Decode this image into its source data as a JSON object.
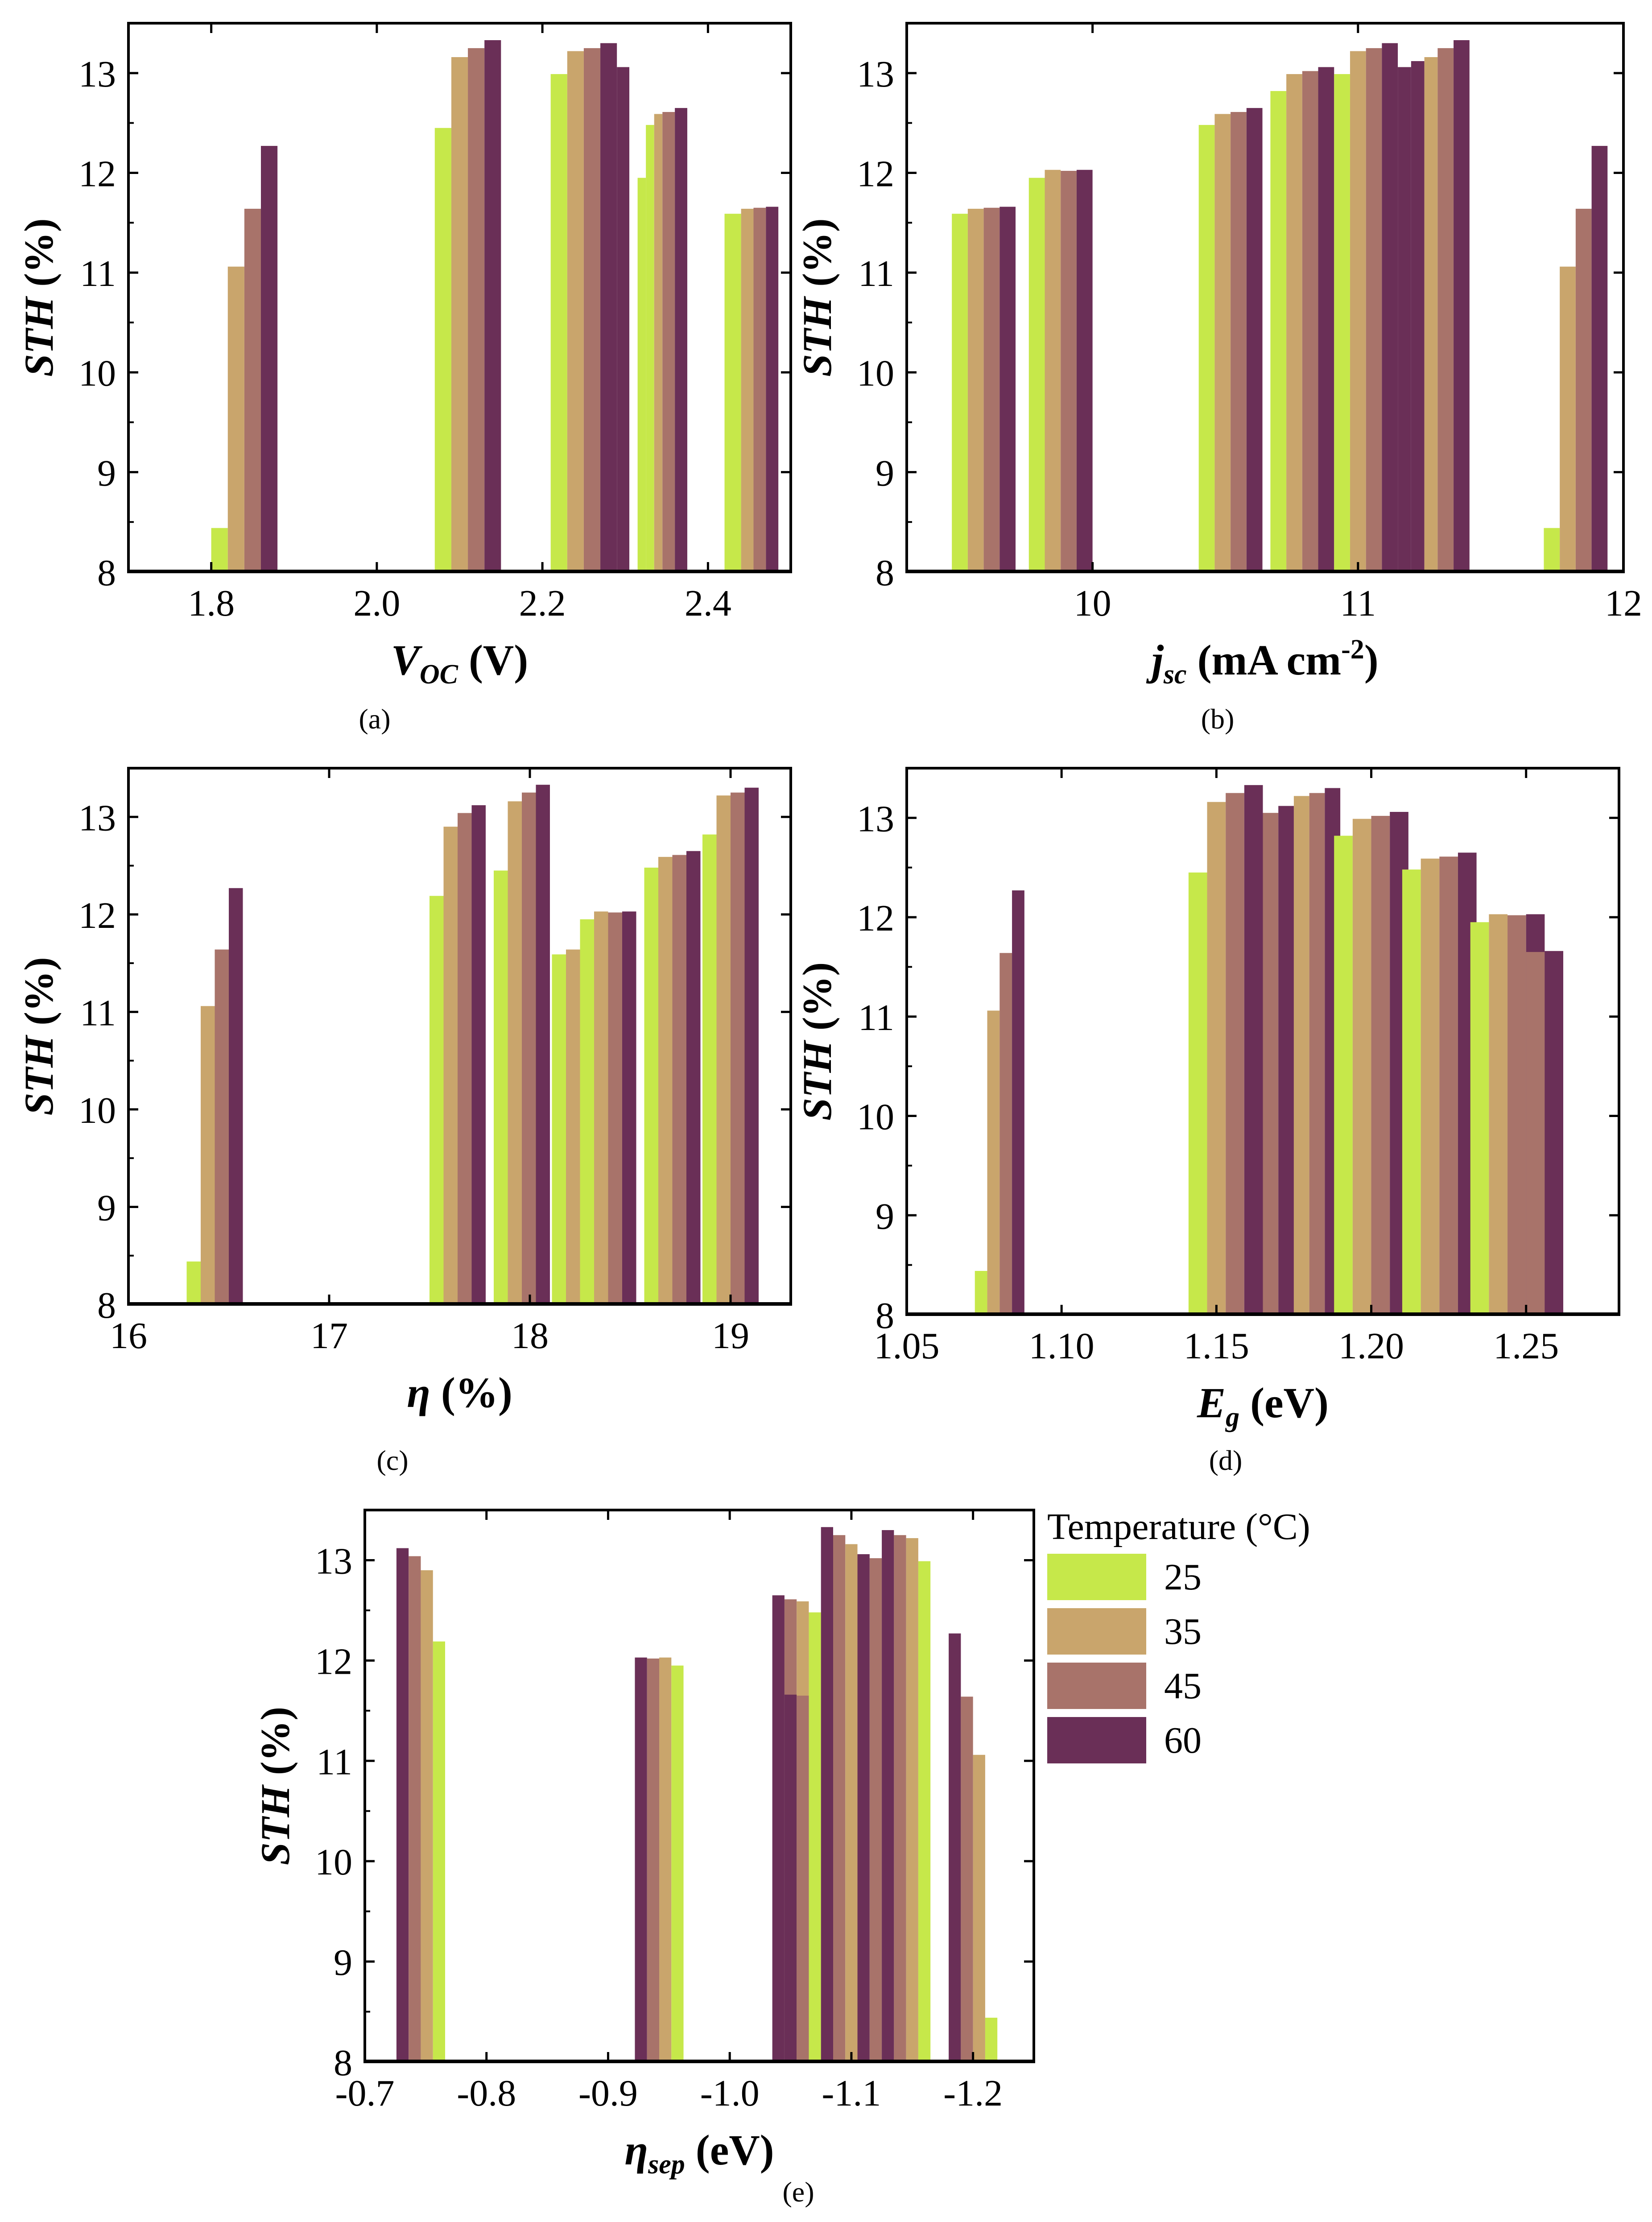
{
  "colors": {
    "25": "#c6e84a",
    "35": "#c9a56c",
    "45": "#a8736a",
    "60": "#6a2f57",
    "axis": "#000000"
  },
  "legend": {
    "title": "Temperature (°C)",
    "items": [
      "25",
      "35",
      "45",
      "60"
    ]
  },
  "chart_data": [
    {
      "id": "a",
      "panel_label": "(a)",
      "type": "bar",
      "ylabel": "STH (%)",
      "xlabel_main": "V",
      "xlabel_sub": "OC",
      "xlabel_tail": " (V)",
      "xlim": [
        1.7,
        2.5
      ],
      "ylim": [
        8,
        13.5
      ],
      "xticks": [
        "1.8",
        "2.0",
        "2.2",
        "2.4"
      ],
      "yticks": [
        "8",
        "9",
        "10",
        "11",
        "12",
        "13"
      ],
      "bars": [
        {
          "t": "25",
          "x": 1.8,
          "x2": 1.82,
          "y": 8.44
        },
        {
          "t": "35",
          "x": 1.82,
          "x2": 1.84,
          "y": 11.06
        },
        {
          "t": "45",
          "x": 1.84,
          "x2": 1.86,
          "y": 11.64
        },
        {
          "t": "60",
          "x": 1.86,
          "x2": 1.88,
          "y": 12.27
        },
        {
          "t": "25",
          "x": 2.07,
          "x2": 2.09,
          "y": 12.45
        },
        {
          "t": "35",
          "x": 2.09,
          "x2": 2.11,
          "y": 13.16
        },
        {
          "t": "45",
          "x": 2.11,
          "x2": 2.13,
          "y": 13.25
        },
        {
          "t": "60",
          "x": 2.13,
          "x2": 2.15,
          "y": 13.33
        },
        {
          "t": "25",
          "x": 2.21,
          "x2": 2.23,
          "y": 12.99
        },
        {
          "t": "35",
          "x": 2.23,
          "x2": 2.25,
          "y": 13.22
        },
        {
          "t": "45",
          "x": 2.25,
          "x2": 2.27,
          "y": 13.25
        },
        {
          "t": "60",
          "x": 2.27,
          "x2": 2.29,
          "y": 13.3
        },
        {
          "t": "60",
          "x": 2.29,
          "x2": 2.305,
          "y": 13.06
        },
        {
          "t": "25",
          "x": 2.315,
          "x2": 2.325,
          "y": 11.95
        },
        {
          "t": "25",
          "x": 2.325,
          "x2": 2.335,
          "y": 12.48
        },
        {
          "t": "35",
          "x": 2.335,
          "x2": 2.345,
          "y": 12.59
        },
        {
          "t": "45",
          "x": 2.345,
          "x2": 2.36,
          "y": 12.61
        },
        {
          "t": "60",
          "x": 2.36,
          "x2": 2.375,
          "y": 12.65
        },
        {
          "t": "25",
          "x": 2.42,
          "x2": 2.44,
          "y": 11.59
        },
        {
          "t": "35",
          "x": 2.44,
          "x2": 2.455,
          "y": 11.64
        },
        {
          "t": "45",
          "x": 2.455,
          "x2": 2.47,
          "y": 11.65
        },
        {
          "t": "60",
          "x": 2.47,
          "x2": 2.485,
          "y": 11.66
        }
      ]
    },
    {
      "id": "b",
      "panel_label": "(b)",
      "type": "bar",
      "ylabel": "STH (%)",
      "xlabel_main": "j",
      "xlabel_sub": "sc",
      "xlabel_tail": " (mA cm",
      "xlabel_sup": "-2",
      "xlabel_end": ")",
      "xlim": [
        9.3,
        12.0
      ],
      "ylim": [
        8,
        13.5
      ],
      "xticks": [
        "10",
        "11",
        "12"
      ],
      "yticks": [
        "8",
        "9",
        "10",
        "11",
        "12",
        "13"
      ],
      "bars": [
        {
          "t": "25",
          "x": 9.47,
          "x2": 9.53,
          "y": 11.59
        },
        {
          "t": "35",
          "x": 9.53,
          "x2": 9.59,
          "y": 11.64
        },
        {
          "t": "45",
          "x": 9.59,
          "x2": 9.65,
          "y": 11.65
        },
        {
          "t": "60",
          "x": 9.65,
          "x2": 9.71,
          "y": 11.66
        },
        {
          "t": "25",
          "x": 9.76,
          "x2": 9.82,
          "y": 11.95
        },
        {
          "t": "35",
          "x": 9.82,
          "x2": 9.88,
          "y": 12.03
        },
        {
          "t": "45",
          "x": 9.88,
          "x2": 9.94,
          "y": 12.02
        },
        {
          "t": "60",
          "x": 9.94,
          "x2": 10.0,
          "y": 12.03
        },
        {
          "t": "25",
          "x": 10.4,
          "x2": 10.46,
          "y": 12.48
        },
        {
          "t": "35",
          "x": 10.46,
          "x2": 10.52,
          "y": 12.59
        },
        {
          "t": "45",
          "x": 10.52,
          "x2": 10.58,
          "y": 12.61
        },
        {
          "t": "60",
          "x": 10.58,
          "x2": 10.64,
          "y": 12.65
        },
        {
          "t": "25",
          "x": 10.67,
          "x2": 10.73,
          "y": 12.82
        },
        {
          "t": "35",
          "x": 10.73,
          "x2": 10.79,
          "y": 12.99
        },
        {
          "t": "45",
          "x": 10.79,
          "x2": 10.85,
          "y": 13.02
        },
        {
          "t": "60",
          "x": 10.85,
          "x2": 10.91,
          "y": 13.06
        },
        {
          "t": "25",
          "x": 10.91,
          "x2": 10.97,
          "y": 12.99
        },
        {
          "t": "35",
          "x": 10.97,
          "x2": 11.03,
          "y": 13.22
        },
        {
          "t": "45",
          "x": 11.03,
          "x2": 11.09,
          "y": 13.25
        },
        {
          "t": "60",
          "x": 11.09,
          "x2": 11.15,
          "y": 13.3
        },
        {
          "t": "60",
          "x": 11.15,
          "x2": 11.2,
          "y": 13.06
        },
        {
          "t": "60",
          "x": 11.2,
          "x2": 11.25,
          "y": 13.12
        },
        {
          "t": "35",
          "x": 11.25,
          "x2": 11.3,
          "y": 13.16
        },
        {
          "t": "45",
          "x": 11.3,
          "x2": 11.36,
          "y": 13.25
        },
        {
          "t": "60",
          "x": 11.36,
          "x2": 11.42,
          "y": 13.33
        },
        {
          "t": "25",
          "x": 11.7,
          "x2": 11.76,
          "y": 8.44
        },
        {
          "t": "35",
          "x": 11.76,
          "x2": 11.82,
          "y": 11.06
        },
        {
          "t": "45",
          "x": 11.82,
          "x2": 11.88,
          "y": 11.64
        },
        {
          "t": "60",
          "x": 11.88,
          "x2": 11.94,
          "y": 12.27
        }
      ]
    },
    {
      "id": "c",
      "panel_label": "(c)",
      "type": "bar",
      "ylabel": "STH (%)",
      "xlabel_main": "η",
      "xlabel_sub": "",
      "xlabel_tail": " (%)",
      "xlim": [
        16.0,
        19.3
      ],
      "ylim": [
        8,
        13.5
      ],
      "xticks": [
        "16",
        "17",
        "18",
        "19"
      ],
      "yticks": [
        "8",
        "9",
        "10",
        "11",
        "12",
        "13"
      ],
      "bars": [
        {
          "t": "25",
          "x": 16.29,
          "x2": 16.36,
          "y": 8.44
        },
        {
          "t": "35",
          "x": 16.36,
          "x2": 16.43,
          "y": 11.06
        },
        {
          "t": "45",
          "x": 16.43,
          "x2": 16.5,
          "y": 11.64
        },
        {
          "t": "60",
          "x": 16.5,
          "x2": 16.57,
          "y": 12.27
        },
        {
          "t": "25",
          "x": 17.5,
          "x2": 17.57,
          "y": 12.19
        },
        {
          "t": "35",
          "x": 17.57,
          "x2": 17.64,
          "y": 12.9
        },
        {
          "t": "45",
          "x": 17.64,
          "x2": 17.71,
          "y": 13.04
        },
        {
          "t": "60",
          "x": 17.71,
          "x2": 17.78,
          "y": 13.12
        },
        {
          "t": "25",
          "x": 17.82,
          "x2": 17.89,
          "y": 12.45
        },
        {
          "t": "35",
          "x": 17.89,
          "x2": 17.96,
          "y": 13.16
        },
        {
          "t": "45",
          "x": 17.96,
          "x2": 18.03,
          "y": 13.25
        },
        {
          "t": "60",
          "x": 18.03,
          "x2": 18.1,
          "y": 13.33
        },
        {
          "t": "25",
          "x": 18.11,
          "x2": 18.18,
          "y": 11.59
        },
        {
          "t": "35",
          "x": 18.18,
          "x2": 18.25,
          "y": 11.64
        },
        {
          "t": "45",
          "x": 18.25,
          "x2": 18.32,
          "y": 11.65
        },
        {
          "t": "60",
          "x": 18.32,
          "x2": 18.39,
          "y": 11.66
        },
        {
          "t": "25",
          "x": 18.25,
          "x2": 18.32,
          "y": 11.95
        },
        {
          "t": "35",
          "x": 18.32,
          "x2": 18.39,
          "y": 12.03
        },
        {
          "t": "45",
          "x": 18.39,
          "x2": 18.46,
          "y": 12.02
        },
        {
          "t": "60",
          "x": 18.46,
          "x2": 18.53,
          "y": 12.03
        },
        {
          "t": "25",
          "x": 18.57,
          "x2": 18.64,
          "y": 12.48
        },
        {
          "t": "35",
          "x": 18.64,
          "x2": 18.71,
          "y": 12.59
        },
        {
          "t": "45",
          "x": 18.71,
          "x2": 18.78,
          "y": 12.61
        },
        {
          "t": "60",
          "x": 18.78,
          "x2": 18.85,
          "y": 12.65
        },
        {
          "t": "25",
          "x": 18.86,
          "x2": 18.93,
          "y": 12.82
        },
        {
          "t": "35",
          "x": 18.93,
          "x2": 19.0,
          "y": 12.99
        },
        {
          "t": "45",
          "x": 19.0,
          "x2": 19.07,
          "y": 13.02
        },
        {
          "t": "60",
          "x": 19.07,
          "x2": 19.12,
          "y": 13.06
        },
        {
          "t": "35",
          "x": 18.93,
          "x2": 19.0,
          "y": 13.22
        },
        {
          "t": "45",
          "x": 19.0,
          "x2": 19.07,
          "y": 13.25
        },
        {
          "t": "60",
          "x": 19.07,
          "x2": 19.14,
          "y": 13.3
        }
      ]
    },
    {
      "id": "d",
      "panel_label": "(d)",
      "type": "bar",
      "ylabel": "STH (%)",
      "xlabel_main": "E",
      "xlabel_sub": "g",
      "xlabel_tail": " (eV)",
      "xlim": [
        1.05,
        1.28
      ],
      "ylim": [
        8,
        13.5
      ],
      "xticks": [
        "1.05",
        "1.10",
        "1.15",
        "1.20",
        "1.25"
      ],
      "yticks": [
        "8",
        "9",
        "10",
        "11",
        "12",
        "13"
      ],
      "bars": [
        {
          "t": "25",
          "x": 1.072,
          "x2": 1.076,
          "y": 8.44
        },
        {
          "t": "35",
          "x": 1.076,
          "x2": 1.08,
          "y": 11.06
        },
        {
          "t": "45",
          "x": 1.08,
          "x2": 1.084,
          "y": 11.64
        },
        {
          "t": "60",
          "x": 1.084,
          "x2": 1.088,
          "y": 12.27
        },
        {
          "t": "25",
          "x": 1.141,
          "x2": 1.147,
          "y": 12.45
        },
        {
          "t": "35",
          "x": 1.147,
          "x2": 1.153,
          "y": 13.16
        },
        {
          "t": "45",
          "x": 1.153,
          "x2": 1.159,
          "y": 13.25
        },
        {
          "t": "60",
          "x": 1.159,
          "x2": 1.165,
          "y": 13.33
        },
        {
          "t": "45",
          "x": 1.165,
          "x2": 1.17,
          "y": 13.05
        },
        {
          "t": "60",
          "x": 1.17,
          "x2": 1.175,
          "y": 13.12
        },
        {
          "t": "35",
          "x": 1.175,
          "x2": 1.18,
          "y": 13.22
        },
        {
          "t": "45",
          "x": 1.18,
          "x2": 1.185,
          "y": 13.25
        },
        {
          "t": "60",
          "x": 1.185,
          "x2": 1.19,
          "y": 13.3
        },
        {
          "t": "25",
          "x": 1.188,
          "x2": 1.194,
          "y": 12.82
        },
        {
          "t": "35",
          "x": 1.194,
          "x2": 1.2,
          "y": 12.99
        },
        {
          "t": "45",
          "x": 1.2,
          "x2": 1.206,
          "y": 13.02
        },
        {
          "t": "60",
          "x": 1.206,
          "x2": 1.212,
          "y": 13.06
        },
        {
          "t": "25",
          "x": 1.21,
          "x2": 1.216,
          "y": 12.48
        },
        {
          "t": "35",
          "x": 1.216,
          "x2": 1.222,
          "y": 12.59
        },
        {
          "t": "45",
          "x": 1.222,
          "x2": 1.228,
          "y": 12.61
        },
        {
          "t": "60",
          "x": 1.228,
          "x2": 1.234,
          "y": 12.65
        },
        {
          "t": "25",
          "x": 1.232,
          "x2": 1.238,
          "y": 11.95
        },
        {
          "t": "35",
          "x": 1.238,
          "x2": 1.244,
          "y": 12.03
        },
        {
          "t": "45",
          "x": 1.244,
          "x2": 1.25,
          "y": 12.02
        },
        {
          "t": "60",
          "x": 1.25,
          "x2": 1.256,
          "y": 12.03
        },
        {
          "t": "45",
          "x": 1.25,
          "x2": 1.256,
          "y": 11.65
        },
        {
          "t": "60",
          "x": 1.256,
          "x2": 1.262,
          "y": 11.66
        }
      ]
    },
    {
      "id": "e",
      "panel_label": "(e)",
      "type": "bar",
      "ylabel": "STH (%)",
      "xlabel_main": "η",
      "xlabel_sub": "sep",
      "xlabel_tail": " (eV)",
      "xlim": [
        -0.7,
        -1.25
      ],
      "ylim": [
        8,
        13.5
      ],
      "xticks": [
        "-0.7",
        "-0.8",
        "-0.9",
        "-1.0",
        "-1.1",
        "-1.2"
      ],
      "yticks": [
        "8",
        "9",
        "10",
        "11",
        "12",
        "13"
      ],
      "bars": [
        {
          "t": "60",
          "x": -0.726,
          "x2": -0.736,
          "y": 13.12
        },
        {
          "t": "45",
          "x": -0.736,
          "x2": -0.746,
          "y": 13.04
        },
        {
          "t": "35",
          "x": -0.746,
          "x2": -0.756,
          "y": 12.9
        },
        {
          "t": "25",
          "x": -0.756,
          "x2": -0.766,
          "y": 12.19
        },
        {
          "t": "60",
          "x": -0.922,
          "x2": -0.932,
          "y": 12.03
        },
        {
          "t": "45",
          "x": -0.932,
          "x2": -0.942,
          "y": 12.02
        },
        {
          "t": "35",
          "x": -0.942,
          "x2": -0.952,
          "y": 12.03
        },
        {
          "t": "25",
          "x": -0.952,
          "x2": -0.962,
          "y": 11.95
        },
        {
          "t": "60",
          "x": -1.035,
          "x2": -1.045,
          "y": 12.65
        },
        {
          "t": "45",
          "x": -1.045,
          "x2": -1.055,
          "y": 12.61
        },
        {
          "t": "35",
          "x": -1.055,
          "x2": -1.065,
          "y": 12.59
        },
        {
          "t": "25",
          "x": -1.065,
          "x2": -1.075,
          "y": 12.48
        },
        {
          "t": "60",
          "x": -1.045,
          "x2": -1.055,
          "y": 11.66
        },
        {
          "t": "45",
          "x": -1.055,
          "x2": -1.065,
          "y": 11.65
        },
        {
          "t": "60",
          "x": -1.075,
          "x2": -1.085,
          "y": 13.33
        },
        {
          "t": "45",
          "x": -1.085,
          "x2": -1.095,
          "y": 13.25
        },
        {
          "t": "35",
          "x": -1.095,
          "x2": -1.105,
          "y": 13.16
        },
        {
          "t": "60",
          "x": -1.105,
          "x2": -1.115,
          "y": 13.06
        },
        {
          "t": "45",
          "x": -1.115,
          "x2": -1.125,
          "y": 13.02
        },
        {
          "t": "60",
          "x": -1.125,
          "x2": -1.135,
          "y": 13.3
        },
        {
          "t": "45",
          "x": -1.135,
          "x2": -1.145,
          "y": 13.25
        },
        {
          "t": "35",
          "x": -1.145,
          "x2": -1.155,
          "y": 13.22
        },
        {
          "t": "25",
          "x": -1.155,
          "x2": -1.165,
          "y": 12.99
        },
        {
          "t": "60",
          "x": -1.18,
          "x2": -1.19,
          "y": 12.27
        },
        {
          "t": "45",
          "x": -1.19,
          "x2": -1.2,
          "y": 11.64
        },
        {
          "t": "35",
          "x": -1.2,
          "x2": -1.21,
          "y": 11.06
        },
        {
          "t": "25",
          "x": -1.21,
          "x2": -1.22,
          "y": 8.44
        }
      ]
    }
  ]
}
